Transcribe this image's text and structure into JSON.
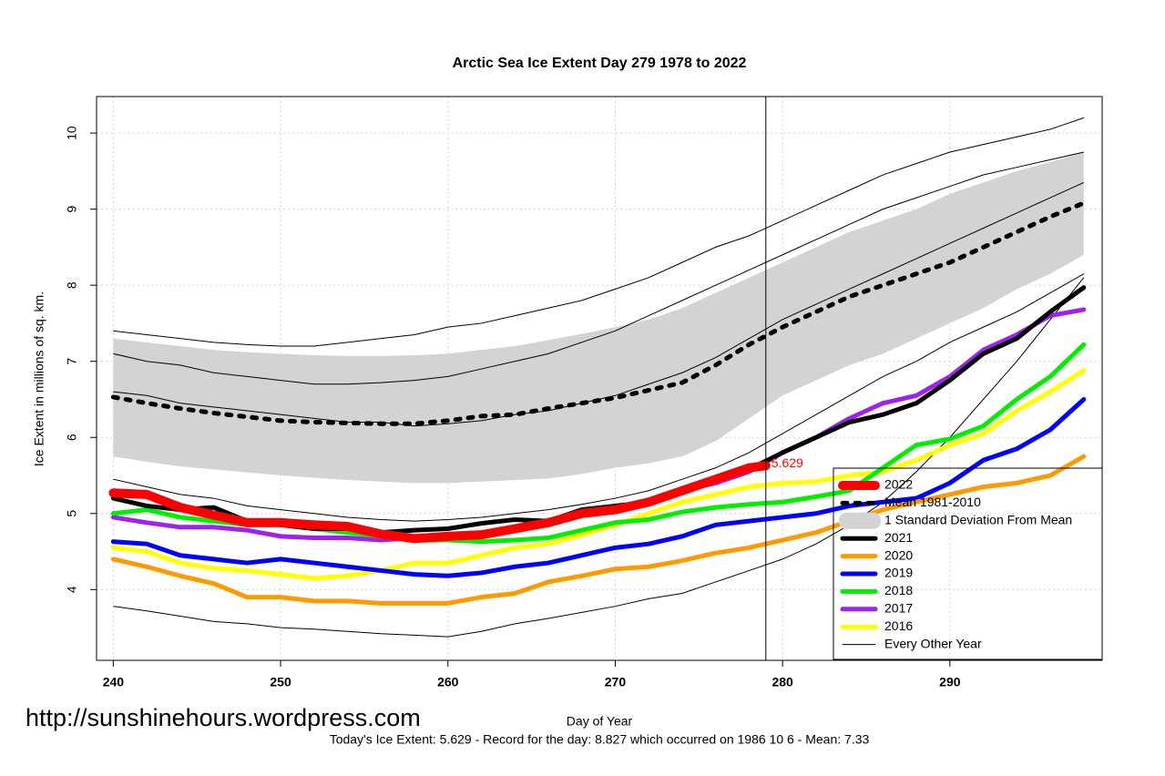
{
  "chart_data": {
    "type": "line",
    "title": "Arctic Sea Ice Extent Day 279 1978 to 2022",
    "x_label": "Day of Year",
    "y_label": "Ice Extent in millions of sq. km.",
    "watermark": "http://sunshinehours.wordpress.com",
    "footer": "Today's Ice Extent: 5.629  - Record for the day: 8.827 which occurred on 1986 10 6  - Mean: 7.33",
    "xlim": [
      239,
      299.1
    ],
    "ylim": [
      3.07,
      10.48
    ],
    "xticks": [
      240,
      250,
      260,
      270,
      280,
      290
    ],
    "yticks": [
      4,
      5,
      6,
      7,
      8,
      9,
      10
    ],
    "grid": true,
    "vline": 279,
    "legend": "bottom-right",
    "x": [
      240,
      242,
      244,
      246,
      248,
      250,
      252,
      254,
      256,
      258,
      260,
      262,
      264,
      266,
      268,
      270,
      272,
      274,
      276,
      278,
      280,
      282,
      284,
      286,
      288,
      290,
      292,
      294,
      296,
      298
    ],
    "series": [
      {
        "name": "2022",
        "color": "#ff0000",
        "style": "thick2022",
        "x": [
          240,
          242,
          244,
          246,
          248,
          250,
          252,
          254,
          256,
          258,
          260,
          262,
          264,
          266,
          268,
          270,
          272,
          274,
          276,
          278,
          279
        ],
        "values": [
          5.27,
          5.25,
          5.08,
          4.98,
          4.88,
          4.88,
          4.85,
          4.83,
          4.73,
          4.67,
          4.7,
          4.72,
          4.8,
          4.88,
          5.0,
          5.05,
          5.15,
          5.3,
          5.45,
          5.6,
          5.629
        ],
        "value_labels": [
          null,
          null,
          null,
          null,
          null,
          null,
          null,
          null,
          null,
          null,
          null,
          null,
          null,
          null,
          null,
          null,
          null,
          null,
          null,
          null,
          "5.629"
        ]
      },
      {
        "name": "Mean 1981-2010",
        "color": "#000000",
        "style": "dotted",
        "values": [
          6.53,
          6.45,
          6.38,
          6.32,
          6.27,
          6.22,
          6.2,
          6.19,
          6.18,
          6.18,
          6.22,
          6.28,
          6.3,
          6.38,
          6.45,
          6.52,
          6.62,
          6.72,
          6.95,
          7.22,
          7.45,
          7.65,
          7.85,
          8.0,
          8.15,
          8.3,
          8.5,
          8.7,
          8.9,
          9.08
        ]
      },
      {
        "name": "1 Standard Deviation From Mean",
        "color": "#d3d3d3",
        "style": "band",
        "upper": [
          7.3,
          7.25,
          7.2,
          7.15,
          7.12,
          7.1,
          7.08,
          7.07,
          7.07,
          7.08,
          7.1,
          7.15,
          7.2,
          7.28,
          7.36,
          7.45,
          7.55,
          7.7,
          7.9,
          8.1,
          8.3,
          8.5,
          8.7,
          8.85,
          9.0,
          9.2,
          9.35,
          9.5,
          9.62,
          9.75
        ],
        "lower": [
          5.75,
          5.68,
          5.62,
          5.58,
          5.54,
          5.5,
          5.47,
          5.44,
          5.42,
          5.4,
          5.4,
          5.42,
          5.44,
          5.46,
          5.52,
          5.6,
          5.66,
          5.75,
          5.95,
          6.25,
          6.55,
          6.75,
          6.95,
          7.1,
          7.3,
          7.5,
          7.7,
          7.95,
          8.15,
          8.4
        ]
      },
      {
        "name": "2021",
        "color": "#000000",
        "style": "thick",
        "values": [
          5.2,
          5.1,
          5.05,
          5.08,
          4.9,
          4.85,
          4.8,
          4.8,
          4.75,
          4.78,
          4.8,
          4.87,
          4.92,
          4.9,
          5.05,
          5.1,
          5.15,
          5.3,
          5.45,
          5.58,
          5.8,
          6.0,
          6.2,
          6.3,
          6.45,
          6.75,
          7.1,
          7.3,
          7.65,
          7.97
        ]
      },
      {
        "name": "2020",
        "color": "#ff9900",
        "style": "thick",
        "values": [
          4.4,
          4.3,
          4.18,
          4.08,
          3.9,
          3.9,
          3.85,
          3.85,
          3.82,
          3.82,
          3.82,
          3.9,
          3.95,
          4.1,
          4.18,
          4.27,
          4.3,
          4.38,
          4.48,
          4.55,
          4.65,
          4.75,
          4.9,
          5.05,
          5.15,
          5.25,
          5.35,
          5.4,
          5.5,
          5.75
        ]
      },
      {
        "name": "2019",
        "color": "#0000ff",
        "style": "thick",
        "values": [
          4.63,
          4.6,
          4.45,
          4.4,
          4.35,
          4.4,
          4.35,
          4.3,
          4.25,
          4.2,
          4.18,
          4.22,
          4.3,
          4.35,
          4.45,
          4.55,
          4.6,
          4.7,
          4.85,
          4.9,
          4.95,
          5.0,
          5.1,
          5.15,
          5.2,
          5.4,
          5.7,
          5.85,
          6.1,
          6.5
        ]
      },
      {
        "name": "2018",
        "color": "#00ee00",
        "style": "thick",
        "values": [
          5.0,
          5.05,
          4.95,
          4.9,
          4.85,
          4.85,
          4.8,
          4.75,
          4.7,
          4.65,
          4.65,
          4.63,
          4.65,
          4.68,
          4.78,
          4.88,
          4.92,
          5.02,
          5.08,
          5.12,
          5.15,
          5.22,
          5.3,
          5.6,
          5.9,
          5.98,
          6.15,
          6.5,
          6.8,
          7.22
        ]
      },
      {
        "name": "2017",
        "color": "#a020f0",
        "style": "thick",
        "values": [
          4.95,
          4.88,
          4.82,
          4.82,
          4.78,
          4.7,
          4.68,
          4.68,
          4.65,
          4.68,
          4.68,
          4.72,
          4.8,
          4.85,
          4.98,
          5.05,
          5.15,
          5.3,
          5.4,
          5.55,
          5.8,
          6.0,
          6.25,
          6.45,
          6.55,
          6.8,
          7.15,
          7.35,
          7.6,
          7.68
        ]
      },
      {
        "name": "2016",
        "color": "#ffff00",
        "style": "thick",
        "values": [
          4.55,
          4.5,
          4.35,
          4.28,
          4.25,
          4.2,
          4.15,
          4.18,
          4.25,
          4.35,
          4.35,
          4.45,
          4.55,
          4.6,
          4.72,
          4.85,
          5.0,
          5.15,
          5.25,
          5.35,
          5.4,
          5.42,
          5.5,
          5.55,
          5.7,
          5.9,
          6.05,
          6.35,
          6.6,
          6.88
        ]
      },
      {
        "name": "Every Other Year",
        "color": "#000000",
        "style": "thin",
        "lines": [
          [
            7.4,
            7.35,
            7.3,
            7.25,
            7.22,
            7.2,
            7.2,
            7.25,
            7.3,
            7.35,
            7.45,
            7.5,
            7.6,
            7.7,
            7.8,
            7.95,
            8.1,
            8.3,
            8.5,
            8.65,
            8.85,
            9.05,
            9.25,
            9.45,
            9.6,
            9.75,
            9.85,
            9.95,
            10.05,
            10.2
          ],
          [
            3.78,
            3.72,
            3.65,
            3.58,
            3.55,
            3.5,
            3.48,
            3.45,
            3.42,
            3.4,
            3.38,
            3.45,
            3.55,
            3.62,
            3.7,
            3.78,
            3.88,
            3.95,
            4.1,
            4.25,
            4.4,
            4.6,
            4.85,
            5.15,
            5.55,
            6.0,
            6.5,
            7.0,
            7.55,
            8.1
          ],
          [
            6.6,
            6.55,
            6.45,
            6.4,
            6.35,
            6.3,
            6.25,
            6.2,
            6.2,
            6.15,
            6.18,
            6.22,
            6.3,
            6.35,
            6.45,
            6.55,
            6.7,
            6.85,
            7.05,
            7.3,
            7.55,
            7.75,
            7.95,
            8.15,
            8.35,
            8.55,
            8.75,
            8.95,
            9.15,
            9.35
          ],
          [
            5.45,
            5.35,
            5.25,
            5.2,
            5.1,
            5.05,
            5.0,
            4.95,
            4.92,
            4.9,
            4.92,
            4.95,
            5.0,
            5.05,
            5.12,
            5.2,
            5.3,
            5.45,
            5.6,
            5.8,
            6.05,
            6.3,
            6.55,
            6.8,
            7.0,
            7.25,
            7.45,
            7.65,
            7.9,
            8.15
          ],
          [
            7.1,
            7.0,
            6.95,
            6.85,
            6.8,
            6.75,
            6.7,
            6.7,
            6.72,
            6.75,
            6.8,
            6.9,
            7.0,
            7.1,
            7.25,
            7.4,
            7.6,
            7.8,
            8.0,
            8.2,
            8.4,
            8.6,
            8.8,
            9.0,
            9.15,
            9.3,
            9.45,
            9.55,
            9.65,
            9.75
          ]
        ]
      }
    ]
  }
}
